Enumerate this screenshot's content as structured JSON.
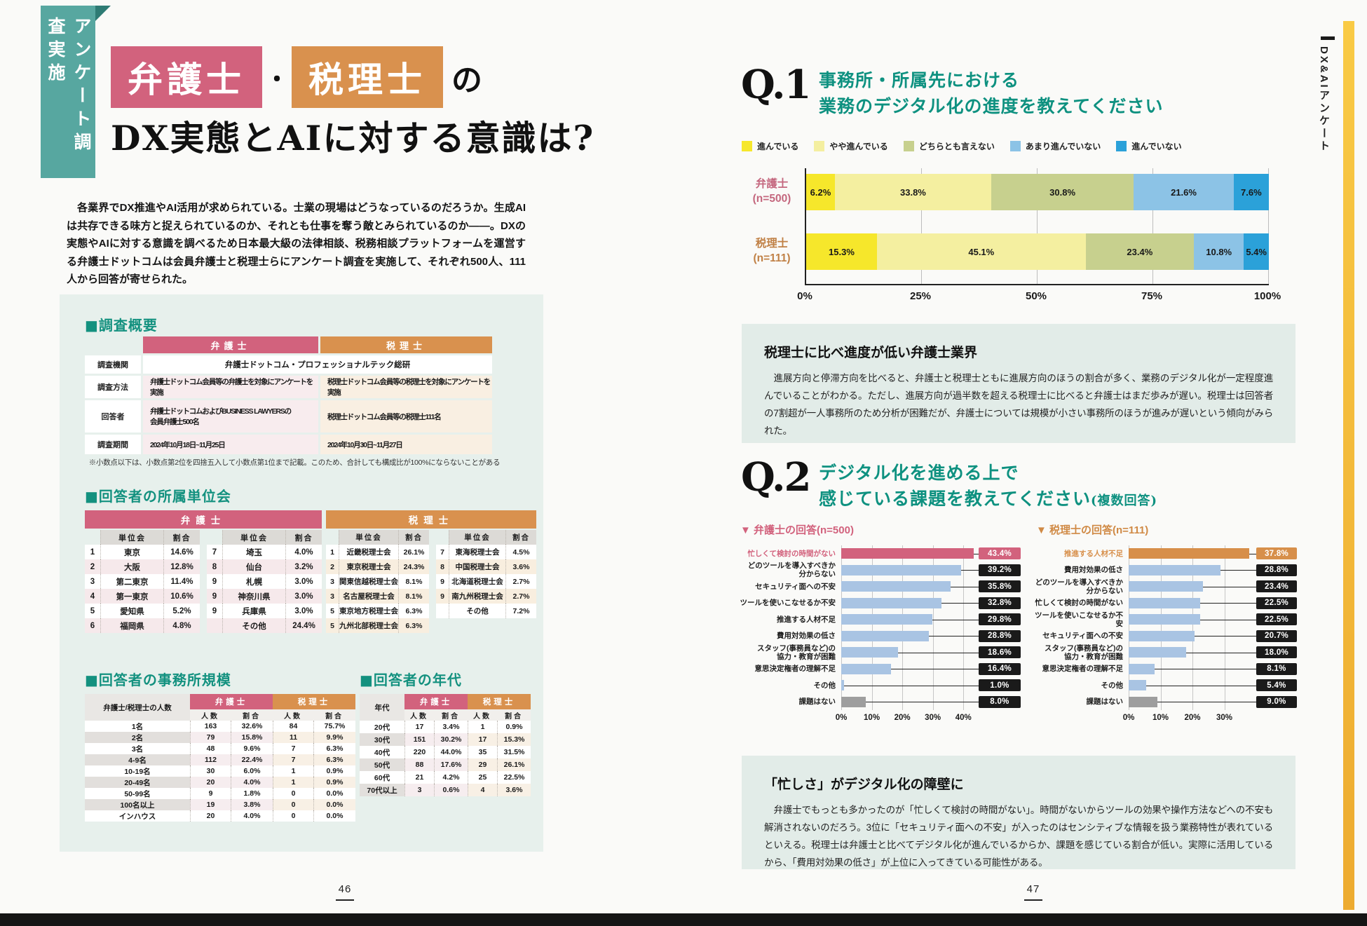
{
  "colors": {
    "teal_tab": "#57a7a0",
    "teal_heading": "#13917f",
    "pink": "#d2627d",
    "orange": "#d9914e",
    "panel_bg": "#e7f0ec",
    "comment_bg": "#e2ece8",
    "edge_bar": "#f3b93c",
    "bar_blue": "#a9c4e3",
    "bar_gray": "#9e9e9e",
    "chip_black": "#1a1a1a"
  },
  "page_left": {
    "tab": "アンケート調査実施",
    "title": {
      "box1": "弁護士",
      "dot": "・",
      "box2": "税理士",
      "suffix": "の",
      "line2": "DX実態とAIに対する意識は?"
    },
    "intro": "各業界でDX推進やAI活用が求められている。士業の現場はどうなっているのだろうか。生成AIは共存できる味方と捉えられているのか、それとも仕事を奪う敵とみられているのか——。DXの実態やAIに対する意識を調べるため日本最大級の法律相談、税務相談プラットフォームを運営する弁護士ドットコムは会員弁護士と税理士らにアンケート調査を実施して、それぞれ500人、111人から回答が寄せられた。",
    "survey_overview": {
      "heading": "■調査概要",
      "col_headers": [
        "弁護士",
        "税理士"
      ],
      "rows": [
        {
          "label": "調査機関",
          "span": "弁護士ドットコム・プロフェッショナルテック総研"
        },
        {
          "label": "調査方法",
          "bengoshi": "弁護士ドットコム会員等の弁護士を対象にアンケートを実施",
          "zeirishi": "税理士ドットコム会員等の税理士を対象にアンケートを実施"
        },
        {
          "label": "回答者",
          "bengoshi": "弁護士ドットコムおよびBUSINESS LAWYERSの\n会員弁護士500名",
          "zeirishi": "税理士ドットコム会員等の税理士111名"
        },
        {
          "label": "調査期間",
          "bengoshi": "2024年10月18日~11月25日",
          "zeirishi": "2024年10月30日~11月27日"
        }
      ],
      "note": "※小数点以下は、小数点第2位を四捨五入して小数点第1位まで記載。このため、合計しても構成比が100%にならないことがある"
    },
    "unit_associations": {
      "heading": "■回答者の所属単位会",
      "sub_headers": [
        "単位会",
        "割合"
      ],
      "bengoshi": {
        "title": "弁護士",
        "left": [
          [
            "1",
            "東京",
            "14.6%"
          ],
          [
            "2",
            "大阪",
            "12.8%"
          ],
          [
            "3",
            "第二東京",
            "11.4%"
          ],
          [
            "4",
            "第一東京",
            "10.6%"
          ],
          [
            "5",
            "愛知県",
            "5.2%"
          ],
          [
            "6",
            "福岡県",
            "4.8%"
          ]
        ],
        "right": [
          [
            "7",
            "埼玉",
            "4.0%"
          ],
          [
            "8",
            "仙台",
            "3.2%"
          ],
          [
            "9",
            "札幌",
            "3.0%"
          ],
          [
            "9",
            "神奈川県",
            "3.0%"
          ],
          [
            "9",
            "兵庫県",
            "3.0%"
          ],
          [
            "",
            "その他",
            "24.4%"
          ]
        ]
      },
      "zeirishi": {
        "title": "税理士",
        "left": [
          [
            "1",
            "近畿税理士会",
            "26.1%"
          ],
          [
            "2",
            "東京税理士会",
            "24.3%"
          ],
          [
            "3",
            "関東信越税理士会",
            "8.1%"
          ],
          [
            "3",
            "名古屋税理士会",
            "8.1%"
          ],
          [
            "5",
            "東京地方税理士会",
            "6.3%"
          ],
          [
            "5",
            "九州北部税理士会",
            "6.3%"
          ]
        ],
        "right": [
          [
            "7",
            "東海税理士会",
            "4.5%"
          ],
          [
            "8",
            "中国税理士会",
            "3.6%"
          ],
          [
            "9",
            "北海道税理士会",
            "2.7%"
          ],
          [
            "9",
            "南九州税理士会",
            "2.7%"
          ],
          [
            "",
            "その他",
            "7.2%"
          ]
        ]
      }
    },
    "office_size": {
      "heading": "■回答者の事務所規模",
      "row_header": "弁護士/税理士の人数",
      "col_groups": [
        "弁護士",
        "税理士"
      ],
      "sub_headers": [
        "人数",
        "割合"
      ],
      "rows": [
        [
          "1名",
          "163",
          "32.6%",
          "84",
          "75.7%"
        ],
        [
          "2名",
          "79",
          "15.8%",
          "11",
          "9.9%"
        ],
        [
          "3名",
          "48",
          "9.6%",
          "7",
          "6.3%"
        ],
        [
          "4-9名",
          "112",
          "22.4%",
          "7",
          "6.3%"
        ],
        [
          "10-19名",
          "30",
          "6.0%",
          "1",
          "0.9%"
        ],
        [
          "20-49名",
          "20",
          "4.0%",
          "1",
          "0.9%"
        ],
        [
          "50-99名",
          "9",
          "1.8%",
          "0",
          "0.0%"
        ],
        [
          "100名以上",
          "19",
          "3.8%",
          "0",
          "0.0%"
        ],
        [
          "インハウス",
          "20",
          "4.0%",
          "0",
          "0.0%"
        ]
      ]
    },
    "age": {
      "heading": "■回答者の年代",
      "row_header": "年代",
      "col_groups": [
        "弁護士",
        "税理士"
      ],
      "sub_headers": [
        "人数",
        "割合"
      ],
      "rows": [
        [
          "20代",
          "17",
          "3.4%",
          "1",
          "0.9%"
        ],
        [
          "30代",
          "151",
          "30.2%",
          "17",
          "15.3%"
        ],
        [
          "40代",
          "220",
          "44.0%",
          "35",
          "31.5%"
        ],
        [
          "50代",
          "88",
          "17.6%",
          "29",
          "26.1%"
        ],
        [
          "60代",
          "21",
          "4.2%",
          "25",
          "22.5%"
        ],
        [
          "70代以上",
          "3",
          "0.6%",
          "4",
          "3.6%"
        ]
      ]
    },
    "page_number": "46"
  },
  "page_right": {
    "q1": {
      "qnum": "Q.1",
      "title_line1": "事務所・所属先における",
      "title_line2": "業務のデジタル化の進度を教えてください",
      "comment_title": "税理士に比べ進度が低い弁護士業界",
      "comment_body": "進展方向と停滞方向を比べると、弁護士と税理士ともに進展方向のほうの割合が多く、業務のデジタル化が一定程度進んでいることがわかる。ただし、進展方向が過半数を超える税理士に比べると弁護士はまだ歩みが遅い。税理士は回答者の7割超が一人事務所のため分析が困難だが、弁護士については規模が小さい事務所のほうが進みが遅いという傾向がみられた。"
    },
    "q2": {
      "qnum": "Q.2",
      "title_line1": "デジタル化を進める上で",
      "title_line2": "感じている課題を教えてください",
      "title_suffix": "(複数回答)",
      "sub_bengoshi": "▼ 弁護士の回答(n=500)",
      "sub_zeirishi": "▼ 税理士の回答(n=111)",
      "comment_title": "「忙しさ」がデジタル化の障壁に",
      "comment_body": "弁護士でもっとも多かったのが「忙しくて検討の時間がない」。時間がないからツールの効果や操作方法などへの不安も解消されないのだろう。3位に「セキュリティ面への不安」が入ったのはセンシティブな情報を扱う業務特性が表れているといえる。税理士は弁護士と比べてデジタル化が進んでいるからか、課題を感じている割合が低い。実際に活用しているから、「費用対効果の低さ」が上位に入ってきている可能性がある。"
    },
    "edge_label": "DX&AIアンケート",
    "page_number": "47"
  },
  "chart_data": [
    {
      "id": "q1",
      "type": "stacked_bar_h",
      "title": "事務所・所属先における業務のデジタル化の進度を教えてください",
      "legend": [
        "進んでいる",
        "やや進んでいる",
        "どちらとも言えない",
        "あまり進んでいない",
        "進んでいない"
      ],
      "colors": [
        "#f6e72b",
        "#f4efa0",
        "#c7d08e",
        "#8cc3e6",
        "#2ba1d9"
      ],
      "categories": [
        "弁護士\n(n=500)",
        "税理士\n(n=111)"
      ],
      "category_colors": [
        "#c4677e",
        "#c08045"
      ],
      "series": [
        {
          "name": "弁護士 (n=500)",
          "values": [
            6.2,
            33.8,
            30.8,
            21.6,
            7.6
          ]
        },
        {
          "name": "税理士 (n=111)",
          "values": [
            15.3,
            45.1,
            23.4,
            10.8,
            5.4
          ]
        }
      ],
      "x_ticks": [
        "0%",
        "25%",
        "50%",
        "75%",
        "100%"
      ],
      "xlim": [
        0,
        100
      ]
    },
    {
      "id": "q2_bengoshi",
      "type": "bar_h",
      "title": "弁護士の回答(n=500)",
      "categories": [
        "忙しくて検討の時間がない",
        "どのツールを導入すべきか\n分からない",
        "セキュリティ面への不安",
        "ツールを使いこなせるか不安",
        "推進する人材不足",
        "費用対効果の低さ",
        "スタッフ(事務員など)の\n協力・教育が困難",
        "意思決定権者の理解不足",
        "その他",
        "課題はない"
      ],
      "values": [
        43.4,
        39.2,
        35.8,
        32.8,
        29.8,
        28.8,
        18.6,
        16.4,
        1.0,
        8.0
      ],
      "highlight_index": 0,
      "gray_index": 9,
      "x_ticks": [
        0,
        10,
        20,
        30,
        40
      ],
      "scale_max": 45,
      "bar_color": "#a9c4e3",
      "highlight_color": "#d2627d",
      "gray_color": "#9e9e9e"
    },
    {
      "id": "q2_zeirishi",
      "type": "bar_h",
      "title": "税理士の回答(n=111)",
      "categories": [
        "推進する人材不足",
        "費用対効果の低さ",
        "どのツールを導入すべきか\n分からない",
        "忙しくて検討の時間がない",
        "ツールを使いこなせるか不安",
        "セキュリティ面への不安",
        "スタッフ(事務員など)の\n協力・教育が困難",
        "意思決定権者の理解不足",
        "その他",
        "課題はない"
      ],
      "values": [
        37.8,
        28.8,
        23.4,
        22.5,
        22.5,
        20.7,
        18.0,
        8.1,
        5.4,
        9.0
      ],
      "highlight_index": 0,
      "gray_index": 9,
      "x_ticks": [
        0,
        10,
        20,
        30
      ],
      "scale_max": 40,
      "bar_color": "#a9c4e3",
      "highlight_color": "#d78f4a",
      "gray_color": "#9e9e9e"
    }
  ]
}
